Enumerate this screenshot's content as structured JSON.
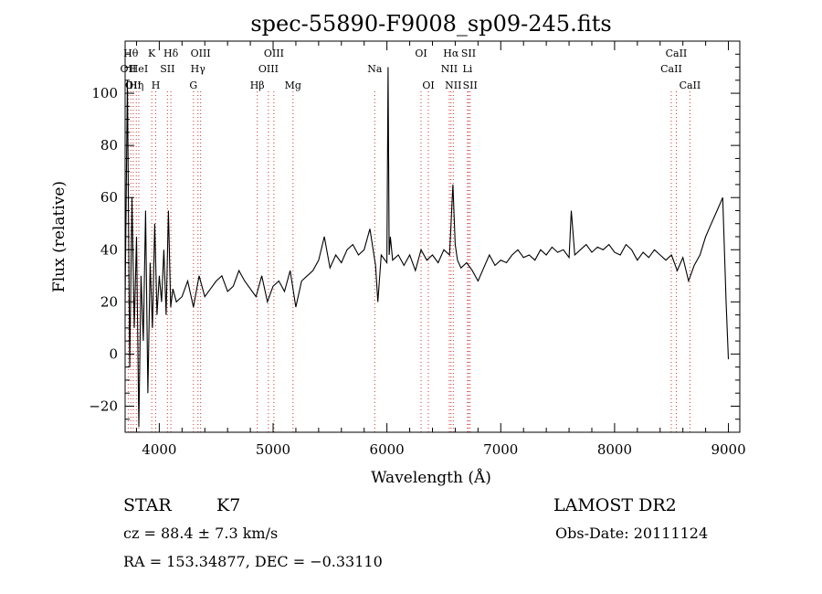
{
  "chart_data": {
    "type": "line",
    "title": "spec-55890-F9008_sp09-245.fits",
    "xlabel": "Wavelength (Å)",
    "ylabel": "Flux (relative)",
    "xlim": [
      3700,
      9100
    ],
    "ylim": [
      -30,
      120
    ],
    "x_ticks": [
      4000,
      5000,
      6000,
      7000,
      8000,
      9000
    ],
    "x_tick_labels": [
      "4000",
      "5000",
      "6000",
      "7000",
      "8000",
      "9000"
    ],
    "y_ticks": [
      -20,
      0,
      20,
      40,
      60,
      80,
      100
    ],
    "y_tick_labels": [
      "−20",
      "0",
      "20",
      "40",
      "60",
      "80",
      "100"
    ],
    "grid": false,
    "line_color": "#000000",
    "marker_color": "#cc3333",
    "series": [
      {
        "x": [
          3700,
          3720,
          3740,
          3760,
          3780,
          3800,
          3820,
          3840,
          3860,
          3880,
          3900,
          3920,
          3940,
          3960,
          3980,
          4000,
          4020,
          4040,
          4060,
          4080,
          4100,
          4120,
          4150,
          4200,
          4250,
          4300,
          4350,
          4400,
          4450,
          4500,
          4550,
          4600,
          4650,
          4700,
          4750,
          4800,
          4850,
          4900,
          4950,
          5000,
          5050,
          5100,
          5150,
          5200,
          5250,
          5300,
          5350,
          5400,
          5450,
          5500,
          5550,
          5600,
          5650,
          5700,
          5750,
          5800,
          5850,
          5900,
          5920,
          5950,
          6000,
          6010,
          6020,
          6030,
          6050,
          6100,
          6150,
          6200,
          6250,
          6300,
          6350,
          6400,
          6450,
          6500,
          6550,
          6580,
          6600,
          6620,
          6650,
          6700,
          6750,
          6800,
          6850,
          6900,
          6950,
          7000,
          7050,
          7100,
          7150,
          7200,
          7250,
          7300,
          7350,
          7400,
          7450,
          7500,
          7550,
          7600,
          7620,
          7650,
          7700,
          7750,
          7800,
          7850,
          7900,
          7950,
          8000,
          8050,
          8100,
          8150,
          8200,
          8250,
          8300,
          8350,
          8400,
          8450,
          8500,
          8550,
          8600,
          8650,
          8700,
          8750,
          8800,
          8850,
          8900,
          8950,
          8980,
          9000
        ],
        "y": [
          20,
          105,
          -5,
          60,
          10,
          45,
          -28,
          30,
          5,
          55,
          -15,
          35,
          10,
          50,
          15,
          30,
          20,
          40,
          15,
          55,
          18,
          25,
          20,
          22,
          28,
          18,
          30,
          22,
          25,
          28,
          30,
          24,
          26,
          32,
          28,
          25,
          22,
          30,
          20,
          26,
          28,
          24,
          32,
          18,
          28,
          30,
          32,
          36,
          45,
          33,
          38,
          35,
          40,
          42,
          38,
          40,
          48,
          34,
          20,
          38,
          35,
          110,
          38,
          45,
          36,
          38,
          34,
          38,
          32,
          40,
          36,
          38,
          35,
          40,
          38,
          65,
          42,
          36,
          33,
          35,
          32,
          28,
          33,
          38,
          34,
          36,
          35,
          38,
          40,
          37,
          38,
          36,
          40,
          38,
          41,
          39,
          40,
          37,
          55,
          38,
          40,
          42,
          39,
          41,
          40,
          42,
          39,
          38,
          42,
          40,
          36,
          39,
          37,
          40,
          38,
          36,
          38,
          32,
          37,
          28,
          34,
          38,
          45,
          50,
          55,
          60,
          20,
          -2
        ]
      }
    ],
    "emission_markers": [
      {
        "x": 3727,
        "label": "OII",
        "row": 2
      },
      {
        "x": 3750,
        "label": "Hθ",
        "row": 1
      },
      {
        "x": 3771,
        "label": "OII",
        "row": 3
      },
      {
        "x": 3798,
        "label": "Hη",
        "row": 3
      },
      {
        "x": 3820,
        "label": "HeI",
        "row": 2
      },
      {
        "x": 3934,
        "label": "K",
        "row": 1
      },
      {
        "x": 3969,
        "label": "H",
        "row": 3
      },
      {
        "x": 4072,
        "label": "SII",
        "row": 2
      },
      {
        "x": 4102,
        "label": "Hδ",
        "row": 1
      },
      {
        "x": 4300,
        "label": "G",
        "row": 3
      },
      {
        "x": 4340,
        "label": "Hγ",
        "row": 2
      },
      {
        "x": 4363,
        "label": "OIII",
        "row": 1
      },
      {
        "x": 4861,
        "label": "Hβ",
        "row": 3
      },
      {
        "x": 4959,
        "label": "OIII",
        "row": 2
      },
      {
        "x": 5007,
        "label": "OIII",
        "row": 1
      },
      {
        "x": 5175,
        "label": "Mg",
        "row": 3
      },
      {
        "x": 5893,
        "label": "Na",
        "row": 2
      },
      {
        "x": 6300,
        "label": "OI",
        "row": 1
      },
      {
        "x": 6364,
        "label": "OI",
        "row": 3
      },
      {
        "x": 6548,
        "label": "NII",
        "row": 2
      },
      {
        "x": 6563,
        "label": "Hα",
        "row": 1
      },
      {
        "x": 6583,
        "label": "NII",
        "row": 3
      },
      {
        "x": 6708,
        "label": "Li",
        "row": 2
      },
      {
        "x": 6717,
        "label": "SII",
        "row": 1
      },
      {
        "x": 6731,
        "label": "SII",
        "row": 3
      },
      {
        "x": 8498,
        "label": "CaII",
        "row": 2
      },
      {
        "x": 8542,
        "label": "CaII",
        "row": 1
      },
      {
        "x": 8662,
        "label": "CaII",
        "row": 3
      }
    ]
  },
  "info": {
    "class": "STAR",
    "subclass": "K7",
    "survey": "LAMOST DR2",
    "cz": "cz = 88.4 ± 7.3 km/s",
    "obs_date": "Obs-Date: 20111124",
    "coords": "RA = 153.34877, DEC =  −0.33110"
  }
}
